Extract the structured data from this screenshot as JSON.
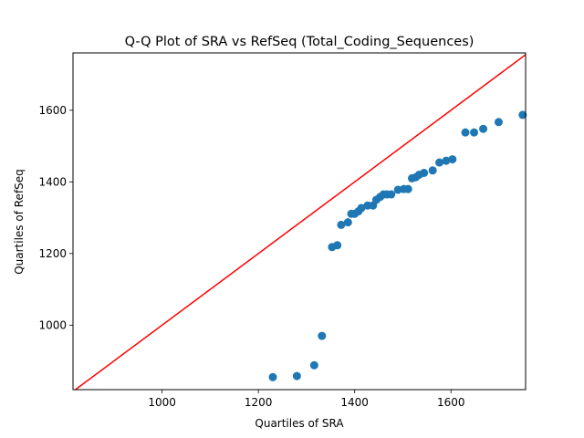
{
  "chart_data": {
    "type": "scatter",
    "title": "Q-Q Plot of SRA vs RefSeq (Total_Coding_Sequences)",
    "xlabel": "Quartiles of SRA",
    "ylabel": "Quartiles of RefSeq",
    "xlim": [
      815,
      1755
    ],
    "ylim": [
      820,
      1760
    ],
    "xticks": [
      1000,
      1200,
      1400,
      1600
    ],
    "yticks": [
      1000,
      1200,
      1400,
      1600
    ],
    "grid": false,
    "colors": {
      "points": "#1f77b4",
      "reference_line": "#ff0000"
    },
    "reference_line": {
      "type": "y=x"
    },
    "points": [
      [
        1230,
        855
      ],
      [
        1280,
        858
      ],
      [
        1316,
        888
      ],
      [
        1332,
        970
      ],
      [
        1353,
        1218
      ],
      [
        1364,
        1223
      ],
      [
        1372,
        1280
      ],
      [
        1386,
        1287
      ],
      [
        1393,
        1311
      ],
      [
        1400,
        1311
      ],
      [
        1408,
        1318
      ],
      [
        1414,
        1327
      ],
      [
        1427,
        1334
      ],
      [
        1438,
        1334
      ],
      [
        1445,
        1350
      ],
      [
        1453,
        1358
      ],
      [
        1460,
        1365
      ],
      [
        1467,
        1365
      ],
      [
        1476,
        1365
      ],
      [
        1490,
        1378
      ],
      [
        1502,
        1380
      ],
      [
        1511,
        1380
      ],
      [
        1519,
        1410
      ],
      [
        1527,
        1413
      ],
      [
        1534,
        1420
      ],
      [
        1544,
        1425
      ],
      [
        1562,
        1432
      ],
      [
        1576,
        1454
      ],
      [
        1590,
        1459
      ],
      [
        1603,
        1463
      ],
      [
        1630,
        1538
      ],
      [
        1648,
        1538
      ],
      [
        1667,
        1548
      ],
      [
        1699,
        1567
      ],
      [
        1749,
        1587
      ]
    ]
  }
}
